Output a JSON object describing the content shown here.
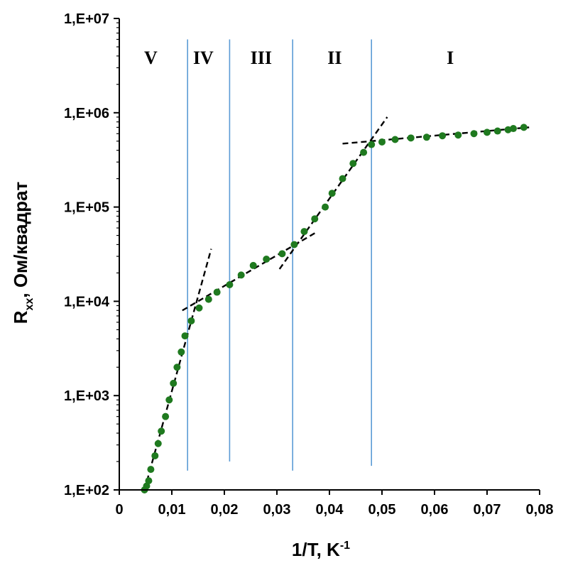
{
  "chart_data": {
    "type": "scatter",
    "title": "",
    "xlabel": "1/T, K",
    "xlabel_sup": "-1",
    "ylabel": "R",
    "ylabel_sub": "xx",
    "ylabel_rest": ", Ом/квадрат",
    "xlim": [
      0,
      0.08
    ],
    "ylim": [
      100,
      10000000
    ],
    "y_scale": "log",
    "grid": false,
    "legend": "none",
    "x_ticks": [
      0,
      0.01,
      0.02,
      0.03,
      0.04,
      0.05,
      0.06,
      0.07,
      0.08
    ],
    "x_tick_labels": [
      "0",
      "0,01",
      "0,02",
      "0,03",
      "0,04",
      "0,05",
      "0,06",
      "0,07",
      "0,08"
    ],
    "y_ticks": [
      100,
      1000,
      10000,
      100000,
      1000000,
      10000000
    ],
    "y_tick_labels": [
      "1,E+02",
      "1,E+03",
      "1,E+04",
      "1,E+05",
      "1,E+06",
      "1,E+07"
    ],
    "point_color": "#1f7a1f",
    "boundary_color": "#5b9bd5",
    "fit_color": "#000000",
    "series": [
      {
        "x": [
          0.0048,
          0.0052,
          0.0056,
          0.006,
          0.0068,
          0.0074,
          0.008,
          0.0088,
          0.0095,
          0.0103,
          0.011,
          0.0118,
          0.0125,
          0.0137,
          0.0152,
          0.017,
          0.0186,
          0.021,
          0.0232,
          0.0255,
          0.028,
          0.031,
          0.0333,
          0.0352,
          0.0372,
          0.0392,
          0.0405,
          0.0425,
          0.0445,
          0.0465,
          0.048,
          0.05,
          0.0525,
          0.0555,
          0.0585,
          0.0615,
          0.0645,
          0.0675,
          0.07,
          0.072,
          0.074,
          0.075,
          0.077
        ],
        "y": [
          100,
          110,
          125,
          165,
          230,
          310,
          420,
          600,
          900,
          1350,
          2000,
          2900,
          4300,
          6200,
          8500,
          10500,
          12500,
          15000,
          19000,
          24000,
          28000,
          32000,
          40000,
          55000,
          75000,
          100000,
          140000,
          200000,
          290000,
          380000,
          460000,
          490000,
          520000,
          540000,
          550000,
          570000,
          580000,
          600000,
          620000,
          640000,
          660000,
          680000,
          700000
        ]
      }
    ],
    "fit_lines": [
      {
        "from": [
          0.0048,
          100
        ],
        "to": [
          0.0175,
          36000
        ]
      },
      {
        "from": [
          0.012,
          8000
        ],
        "to": [
          0.0375,
          54000
        ]
      },
      {
        "from": [
          0.0305,
          22000
        ],
        "to": [
          0.051,
          900000
        ]
      },
      {
        "from": [
          0.0425,
          470000
        ],
        "to": [
          0.078,
          700000
        ]
      }
    ],
    "boundaries": [
      {
        "x": 0.013,
        "y_top": 6000000,
        "y_bottom": 160
      },
      {
        "x": 0.021,
        "y_top": 6000000,
        "y_bottom": 200
      },
      {
        "x": 0.033,
        "y_top": 6000000,
        "y_bottom": 160
      },
      {
        "x": 0.048,
        "y_top": 6000000,
        "y_bottom": 180
      }
    ],
    "regions": [
      {
        "label": "V",
        "x": 0.006
      },
      {
        "label": "IV",
        "x": 0.016
      },
      {
        "label": "III",
        "x": 0.027
      },
      {
        "label": "II",
        "x": 0.041
      },
      {
        "label": "I",
        "x": 0.063
      }
    ]
  }
}
